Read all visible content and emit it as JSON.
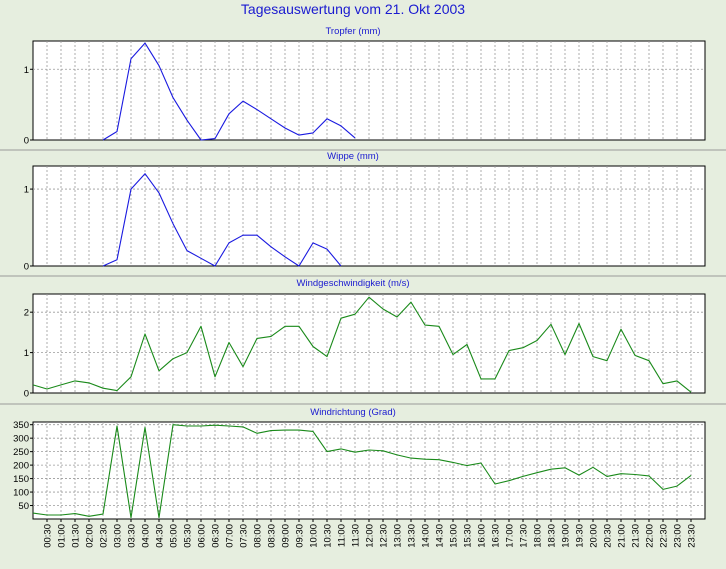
{
  "page_title": "Tagesauswertung vom 21. Okt 2003",
  "colors": {
    "background": "#e6eedf",
    "plot_background": "#ffffff",
    "title": "#1a1ad0",
    "rain_line": "#1a1ae0",
    "wind_line": "#1a8a1a",
    "grid": "#9a9a9a",
    "separator": "#9a9a9a"
  },
  "chart_data": [
    {
      "type": "line",
      "title": "Tropfer (mm)",
      "ylim": [
        0,
        1.4
      ],
      "yticks": [
        0,
        1
      ],
      "grid": true,
      "series_color": "rain_line",
      "x": [
        2.5,
        3.0,
        3.5,
        4.0,
        4.5,
        5.0,
        5.5,
        6.0,
        6.5,
        7.0,
        7.5,
        8.0,
        8.5,
        9.0,
        9.5,
        10.0,
        10.5,
        11.0,
        11.5
      ],
      "values": [
        0,
        0.12,
        1.15,
        1.37,
        1.05,
        0.6,
        0.28,
        0,
        0.02,
        0.37,
        0.55,
        0.43,
        0.3,
        0.17,
        0.07,
        0.1,
        0.3,
        0.2,
        0.03
      ]
    },
    {
      "type": "line",
      "title": "Wippe (mm)",
      "ylim": [
        0,
        1.3
      ],
      "yticks": [
        0,
        1
      ],
      "grid": true,
      "series_color": "rain_line",
      "x": [
        2.5,
        3.0,
        3.5,
        4.0,
        4.5,
        5.0,
        5.5,
        6.0,
        6.5,
        7.0,
        7.5,
        8.0,
        8.5,
        9.0,
        9.5,
        10.0,
        10.5,
        11.0
      ],
      "values": [
        0,
        0.08,
        1.0,
        1.2,
        0.95,
        0.55,
        0.2,
        0.1,
        0,
        0.3,
        0.4,
        0.4,
        0.25,
        0.12,
        0,
        0.3,
        0.22,
        0
      ]
    },
    {
      "type": "line",
      "title": "Windgeschwindigkeit (m/s)",
      "ylim": [
        0,
        2.45
      ],
      "yticks": [
        0,
        1,
        2
      ],
      "grid": true,
      "series_color": "wind_line",
      "x": [
        0,
        0.5,
        1.0,
        1.5,
        2.0,
        2.5,
        3.0,
        3.5,
        4.0,
        4.5,
        5.0,
        5.5,
        6.0,
        6.5,
        7.0,
        7.5,
        8.0,
        8.5,
        9.0,
        9.5,
        10.0,
        10.5,
        11.0,
        11.5,
        12.0,
        12.5,
        13.0,
        13.5,
        14.0,
        14.5,
        15.0,
        15.5,
        16.0,
        16.5,
        17.0,
        17.5,
        18.0,
        18.5,
        19.0,
        19.5,
        20.0,
        20.5,
        21.0,
        21.5,
        22.0,
        22.5,
        23.0,
        23.5
      ],
      "values": [
        0.2,
        0.1,
        0.2,
        0.3,
        0.25,
        0.12,
        0.06,
        0.4,
        1.46,
        0.55,
        0.85,
        1.0,
        1.65,
        0.4,
        1.25,
        0.65,
        1.35,
        1.4,
        1.65,
        1.65,
        1.15,
        0.9,
        1.85,
        1.95,
        2.37,
        2.08,
        1.88,
        2.25,
        1.68,
        1.65,
        0.95,
        1.2,
        0.35,
        0.35,
        1.05,
        1.12,
        1.3,
        1.7,
        0.95,
        1.72,
        0.9,
        0.8,
        1.58,
        0.93,
        0.8,
        0.23,
        0.3,
        0.02
      ]
    },
    {
      "type": "line",
      "title": "Windrichtung (Grad)",
      "ylim": [
        0,
        360
      ],
      "yticks": [
        50,
        100,
        150,
        200,
        250,
        300,
        350
      ],
      "grid": true,
      "series_color": "wind_line",
      "x": [
        0,
        0.5,
        1.0,
        1.5,
        2.0,
        2.5,
        3.0,
        3.5,
        4.0,
        4.5,
        5.0,
        5.5,
        6.0,
        6.5,
        7.0,
        7.5,
        8.0,
        8.5,
        9.0,
        9.5,
        10.0,
        10.5,
        11.0,
        11.5,
        12.0,
        12.5,
        13.0,
        13.5,
        14.0,
        14.5,
        15.0,
        15.5,
        16.0,
        16.5,
        17.0,
        17.5,
        18.0,
        18.5,
        19.0,
        19.5,
        20.0,
        20.5,
        21.0,
        21.5,
        22.0,
        22.5,
        23.0,
        23.5
      ],
      "values": [
        22,
        15,
        15,
        20,
        10,
        18,
        345,
        5,
        340,
        5,
        350,
        345,
        345,
        348,
        345,
        342,
        318,
        328,
        330,
        330,
        325,
        250,
        260,
        248,
        256,
        253,
        238,
        226,
        222,
        220,
        210,
        198,
        208,
        130,
        142,
        158,
        172,
        185,
        190,
        163,
        192,
        158,
        168,
        165,
        160,
        110,
        122,
        162
      ]
    }
  ],
  "x_axis": {
    "tick_labels": [
      "00:30",
      "01:00",
      "01:30",
      "02:00",
      "02:30",
      "03:00",
      "03:30",
      "04:00",
      "04:30",
      "05:00",
      "05:30",
      "06:00",
      "06:30",
      "07:00",
      "07:30",
      "08:00",
      "08:30",
      "09:00",
      "09:30",
      "10:00",
      "10:30",
      "11:00",
      "11:30",
      "12:00",
      "12:30",
      "13:00",
      "13:30",
      "14:00",
      "14:30",
      "15:00",
      "15:30",
      "16:00",
      "16:30",
      "17:00",
      "17:30",
      "18:00",
      "18:30",
      "19:00",
      "19:30",
      "20:00",
      "20:30",
      "21:00",
      "21:30",
      "22:00",
      "22:30",
      "23:00",
      "23:30"
    ]
  }
}
